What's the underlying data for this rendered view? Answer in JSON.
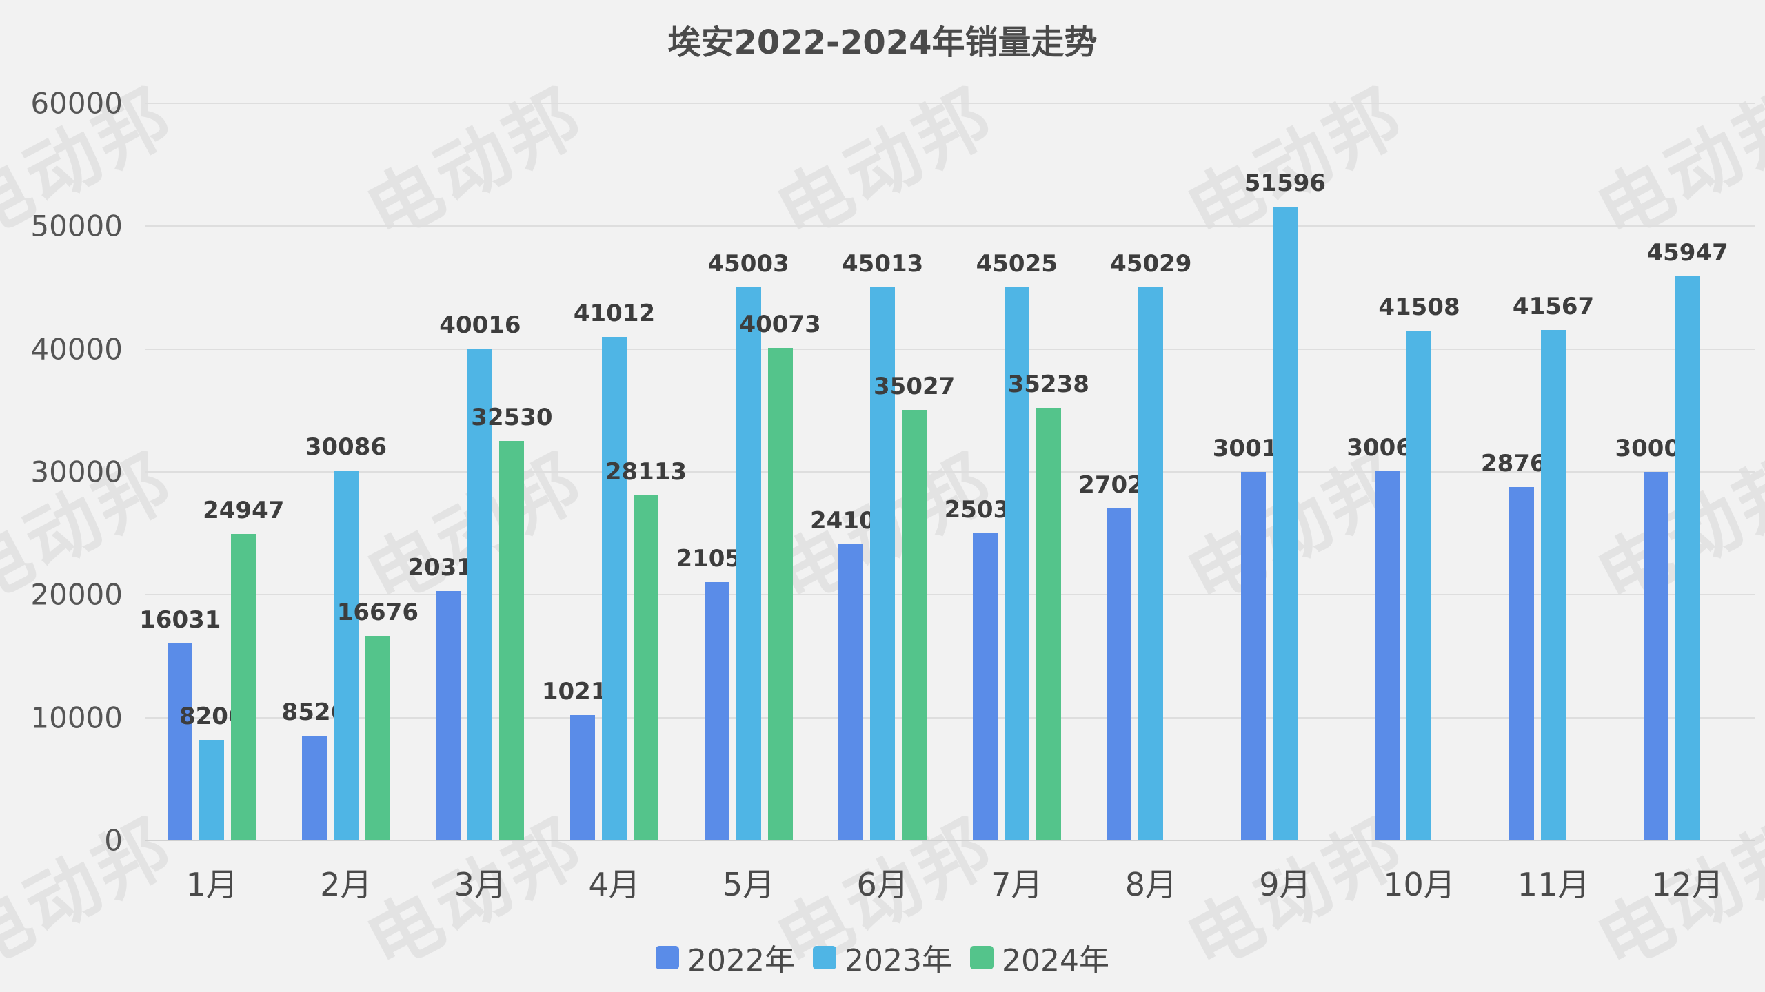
{
  "title": "埃安2022-2024年销量走势",
  "watermark": {
    "text": "电动邦"
  },
  "chart_data": {
    "type": "bar",
    "title": "埃安2022-2024年销量走势",
    "categories": [
      "1月",
      "2月",
      "3月",
      "4月",
      "5月",
      "6月",
      "7月",
      "8月",
      "9月",
      "10月",
      "11月",
      "12月"
    ],
    "series": [
      {
        "name": "2022年",
        "color": "#5a8ce8",
        "values": [
          16031,
          8526,
          20317,
          10212,
          21056,
          24109,
          25033,
          27021,
          30016,
          30063,
          28765,
          30007
        ]
      },
      {
        "name": "2023年",
        "color": "#4fb5e5",
        "values": [
          8206,
          30086,
          40016,
          41012,
          45003,
          45013,
          45025,
          45029,
          51596,
          41508,
          41567,
          45947
        ]
      },
      {
        "name": "2024年",
        "color": "#54c48b",
        "values": [
          24947,
          16676,
          32530,
          28113,
          40073,
          35027,
          35238,
          null,
          null,
          null,
          null,
          null
        ]
      }
    ],
    "xlabel": "",
    "ylabel": "",
    "ylim": [
      0,
      60000
    ],
    "ytick_step": 10000,
    "y_tick_labels": [
      "0",
      "10000",
      "20000",
      "30000",
      "40000",
      "50000",
      "60000"
    ],
    "grid": true,
    "legend_position": "bottom",
    "data_labels": true
  }
}
